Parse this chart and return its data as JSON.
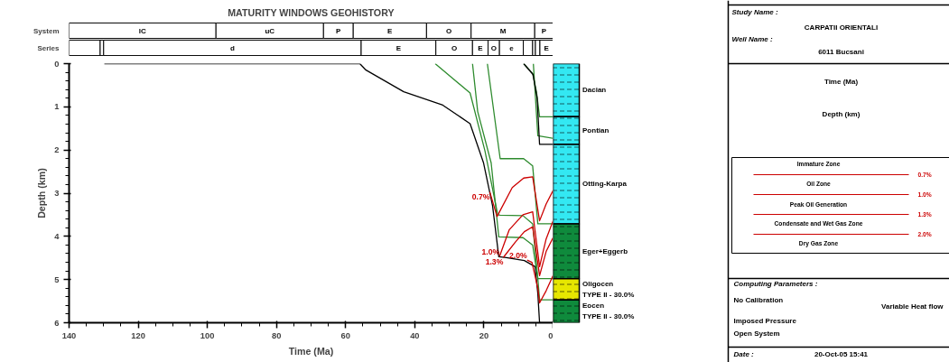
{
  "chart_data": [
    {
      "type": "bar",
      "title": "MATURITY WINDOWS GEOHISTORY",
      "orientation": "horizontal",
      "categories": [
        "System",
        "Series"
      ],
      "xlim": [
        140,
        0
      ],
      "tick_labels": "y",
      "series": [
        {
          "color": "#ffffff",
          "values": [
            42.5,
            null
          ],
          "base": [
            97.5,
            null
          ],
          "value_labels": [
            "lC",
            null
          ]
        },
        {
          "color": "#ffffff",
          "values": [
            31.1,
            null
          ],
          "base": [
            66.4,
            null
          ],
          "value_labels": [
            "uC",
            null
          ]
        },
        {
          "color": "#ffffff",
          "values": [
            8.6,
            null
          ],
          "base": [
            57.8,
            null
          ],
          "value_labels": [
            "P",
            null
          ]
        },
        {
          "color": "#ffffff",
          "values": [
            21.2,
            null
          ],
          "base": [
            36.6,
            null
          ],
          "value_labels": [
            "E",
            null
          ]
        },
        {
          "color": "#ffffff",
          "values": [
            12.9,
            null
          ],
          "base": [
            23.7,
            null
          ],
          "value_labels": [
            "O",
            null
          ]
        },
        {
          "color": "#ffffff",
          "values": [
            18.4,
            null
          ],
          "base": [
            5.3,
            null
          ],
          "value_labels": [
            "M",
            null
          ]
        },
        {
          "color": "#ffffff",
          "values": [
            5.3,
            null
          ],
          "base": [
            0,
            null
          ],
          "value_labels": [
            "P",
            null
          ]
        },
        {
          "color": "#ffffff",
          "values": [
            null,
            9
          ],
          "base": [
            null,
            131
          ],
          "value_labels": [
            null,
            null
          ]
        },
        {
          "color": "#ffffff",
          "values": [
            null,
            1
          ],
          "base": [
            null,
            130
          ],
          "value_labels": [
            null,
            null
          ]
        },
        {
          "color": "#ffffff",
          "values": [
            null,
            74.5
          ],
          "base": [
            null,
            55.5
          ],
          "value_labels": [
            null,
            "d"
          ]
        },
        {
          "color": "#ffffff",
          "values": [
            null,
            21.6
          ],
          "base": [
            null,
            33.9
          ],
          "value_labels": [
            null,
            "E"
          ]
        },
        {
          "color": "#ffffff",
          "values": [
            null,
            10.6
          ],
          "base": [
            null,
            23.3
          ],
          "value_labels": [
            null,
            "O"
          ]
        },
        {
          "color": "#ffffff",
          "values": [
            null,
            4.5
          ],
          "base": [
            null,
            18.8
          ],
          "value_labels": [
            null,
            "E"
          ]
        },
        {
          "color": "#ffffff",
          "values": [
            null,
            3.3
          ],
          "base": [
            null,
            15.5
          ],
          "value_labels": [
            null,
            "O"
          ]
        },
        {
          "color": "#ffffff",
          "values": [
            null,
            6.9
          ],
          "base": [
            null,
            8.6
          ],
          "value_labels": [
            null,
            "e"
          ]
        },
        {
          "color": "#ffffff",
          "values": [
            null,
            2.7
          ],
          "base": [
            null,
            5.9
          ],
          "value_labels": [
            null,
            null
          ]
        },
        {
          "color": "#ffffff",
          "values": [
            null,
            0.8
          ],
          "base": [
            null,
            5.1
          ],
          "value_labels": [
            null,
            null
          ]
        },
        {
          "color": "#ffffff",
          "values": [
            null,
            1.3
          ],
          "base": [
            null,
            3.8
          ],
          "value_labels": [
            null,
            null
          ]
        },
        {
          "color": "#ffffff",
          "values": [
            null,
            3.8
          ],
          "base": [
            null,
            0
          ],
          "value_labels": [
            null,
            "E"
          ]
        }
      ]
    },
    {
      "type": "line",
      "xlabel": "Time (Ma)",
      "ylabel": "Depth (km)",
      "xlim": [
        140,
        0
      ],
      "ylim": [
        6,
        0
      ],
      "xticks": [
        140,
        120,
        100,
        80,
        60,
        40,
        20,
        0
      ],
      "yticks": [
        0,
        1,
        2,
        3,
        4,
        5,
        6
      ],
      "series": [
        {
          "color": "#000000",
          "x": [
            129.8,
            55.9,
            54.1,
            43.2,
            31.9,
            24.0,
            20.1,
            17.5,
            15.7,
            13.5,
            8.3,
            5.2,
            4.4,
            3.9,
            0
          ],
          "values": [
            0,
            0,
            0.15,
            0.65,
            0.96,
            1.39,
            2.3,
            3.29,
            4.47,
            4.49,
            4.56,
            4.7,
            5.33,
            6.0,
            6.0
          ]
        },
        {
          "color": "#2e8b2e",
          "x": [
            34.1,
            24.0,
            19.7,
            16.0,
            15.3,
            8.7,
            5.9,
            4.4,
            3.9,
            0
          ],
          "values": [
            0,
            0.68,
            2.02,
            3.5,
            3.51,
            3.52,
            3.71,
            4.98,
            5.47,
            5.47
          ]
        },
        {
          "color": "#2e8b2e",
          "x": [
            23.3,
            21.8,
            17.9,
            15.7,
            8.7,
            5.9,
            4.4,
            0
          ],
          "values": [
            0,
            1.11,
            2.3,
            4.01,
            4.03,
            4.2,
            4.98,
            4.98
          ]
        },
        {
          "color": "#2e8b2e",
          "x": [
            19.0,
            15.3,
            8.5,
            5.9,
            4.4,
            0
          ],
          "values": [
            0,
            2.2,
            2.2,
            2.37,
            3.71,
            3.71
          ]
        },
        {
          "color": "#2e8b2e",
          "x": [
            8.5,
            5.9,
            4.8,
            3.9,
            0
          ],
          "values": [
            0,
            0.23,
            0.65,
            1.23,
            1.23
          ]
        },
        {
          "color": "#2e8b2e",
          "x": [
            5.7,
            4.4,
            0
          ],
          "values": [
            0,
            1.67,
            1.73
          ]
        },
        {
          "color": "#000000",
          "x": [
            8.5,
            5.8,
            4.6,
            3.9,
            0
          ],
          "values": [
            0,
            0.25,
            0.8,
            1.87,
            1.87
          ]
        },
        {
          "name": "0.7%",
          "color": "#cc0000",
          "x": [
            18.3,
            16.2,
            11.8,
            8.5,
            5.9,
            3.9,
            2.0,
            0
          ],
          "values": [
            2.97,
            3.54,
            2.87,
            2.65,
            2.62,
            3.64,
            3.25,
            2.94
          ]
        },
        {
          "name": "1.0%",
          "color": "#cc0000",
          "x": [
            15.5,
            12.7,
            8.7,
            5.9,
            3.9,
            2.0,
            0
          ],
          "values": [
            4.47,
            3.85,
            3.5,
            3.43,
            4.7,
            4.06,
            3.64
          ]
        },
        {
          "name": "1.3%",
          "color": "#cc0000",
          "x": [
            14.4,
            10.9,
            8.3,
            5.9,
            3.9,
            2.0,
            0
          ],
          "values": [
            4.49,
            4.13,
            3.89,
            3.78,
            4.91,
            4.35,
            4.03
          ]
        },
        {
          "name": "2.0%",
          "color": "#cc0000",
          "x": [
            7.5,
            6.1,
            4.4,
            3.9,
            2.0,
            0
          ],
          "values": [
            4.55,
            4.6,
            5.2,
            5.54,
            5.26,
            4.91
          ]
        }
      ]
    },
    {
      "type": "bar",
      "stacked": true,
      "categories": [
        null
      ],
      "ylim": [
        6,
        0
      ],
      "tick_labels": false,
      "series": [
        {
          "name": "Dacian",
          "color": "#33e8f2",
          "values": [
            1.23
          ]
        },
        {
          "name": "Pontian",
          "color": "#33e8f2",
          "values": [
            0.64
          ]
        },
        {
          "name": "Otting-Karpa",
          "color": "#33e8f2",
          "values": [
            1.84
          ]
        },
        {
          "name": "Eger+Eggerb",
          "color": "#0f8a3c",
          "values": [
            1.27
          ]
        },
        {
          "name": "Oligocen\n  TYPE II - 30.0%",
          "color": "#e6e600",
          "values": [
            0.49
          ]
        },
        {
          "name": "Eocen\n  TYPE II - 30.0%",
          "color": "#0f8a3c",
          "values": [
            0.53
          ]
        }
      ]
    },
    {
      "type": "other",
      "annotations": [
        "Study Name :",
        "CARPATII ORIENTALI",
        "Well Name :",
        "6011 Bucsani",
        "Time (Ma)",
        "Depth (km)",
        "Immature Zone",
        "0.7%",
        "Oil Zone",
        "1.0%",
        "Peak Oil Generation",
        "1.3%",
        "Condensate and Wet Gas Zone",
        "2.0%",
        "Dry Gas Zone",
        "Computing Parameters :",
        "No Calibration",
        "Variable Heat flow",
        "Imposed Pressure",
        "Open System",
        "Date :",
        "20-Oct-05 15:41"
      ]
    }
  ]
}
